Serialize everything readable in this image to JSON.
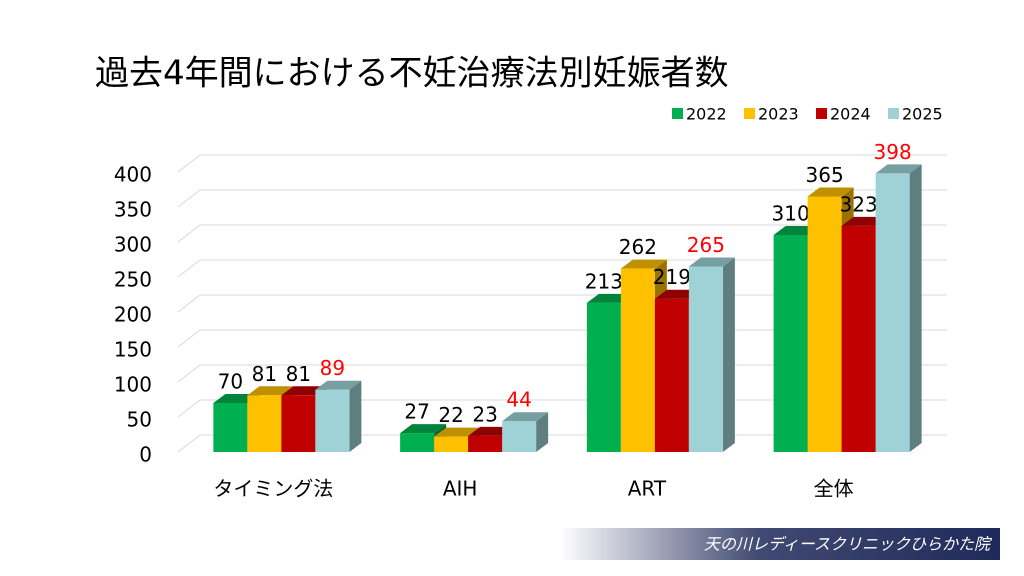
{
  "chart_data": {
    "type": "bar3d",
    "title": "過去4年間における不妊治療法別妊娠者数",
    "categories": [
      "タイミング法",
      "AIH",
      "ART",
      "全体"
    ],
    "series": [
      {
        "name": "2022",
        "color": "#00b050",
        "label_color": "#000000",
        "values": [
          70,
          27,
          213,
          310
        ]
      },
      {
        "name": "2023",
        "color": "#ffc000",
        "label_color": "#000000",
        "values": [
          81,
          22,
          262,
          365
        ]
      },
      {
        "name": "2024",
        "color": "#c00000",
        "label_color": "#000000",
        "values": [
          81,
          23,
          219,
          323
        ]
      },
      {
        "name": "2025",
        "color": "#9fd2d6",
        "label_color": "#ff0000",
        "values": [
          89,
          44,
          265,
          398
        ]
      }
    ],
    "ylim": [
      0,
      400
    ],
    "yticks": [
      0,
      50,
      100,
      150,
      200,
      250,
      300,
      350,
      400
    ],
    "grid": true,
    "legend": "top-right"
  },
  "footer": "天の川レディースクリニックひらかた院"
}
